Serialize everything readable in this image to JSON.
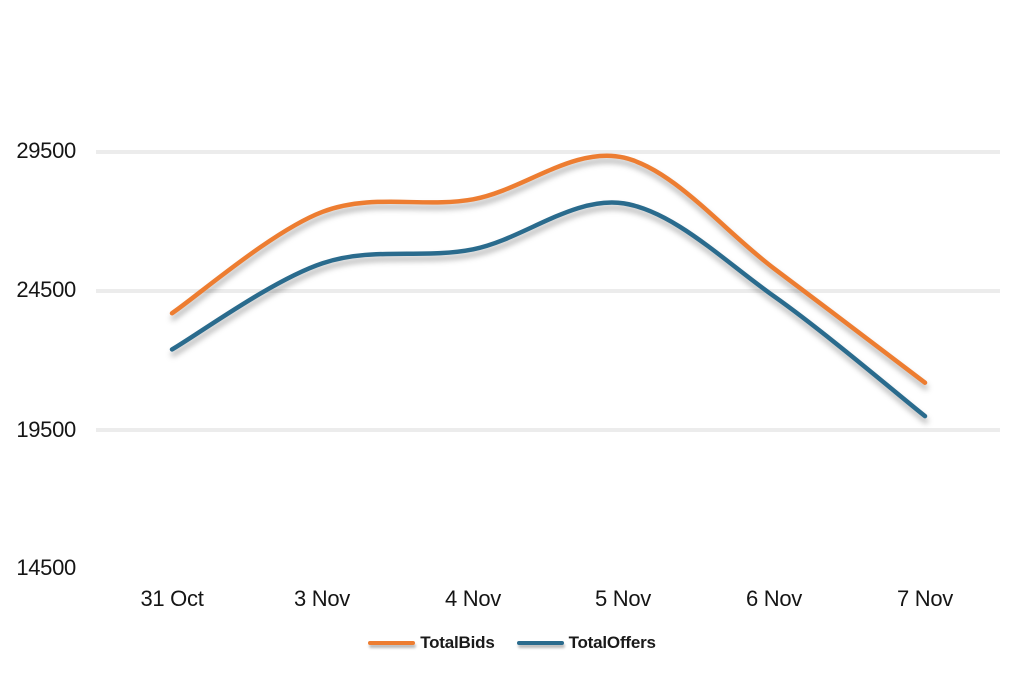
{
  "chart_data": {
    "type": "line",
    "title": "",
    "xlabel": "",
    "ylabel": "",
    "smooth": true,
    "grid": "horizontal",
    "legend_position": "bottom",
    "categories": [
      "31 Oct",
      "3 Nov",
      "4 Nov",
      "5 Nov",
      "6 Nov",
      "7 Nov"
    ],
    "series": [
      {
        "name": "TotalBids",
        "color": "#ED7D31",
        "values": [
          23700,
          27350,
          27800,
          29300,
          25300,
          21200
        ]
      },
      {
        "name": "TotalOffers",
        "color": "#2A6B8D",
        "values": [
          22400,
          25500,
          26000,
          27650,
          24300,
          20000
        ]
      }
    ],
    "yticks": [
      14500,
      19500,
      24500,
      29500
    ],
    "ytick_labels": [
      "29500",
      "24500",
      "19500",
      "14500"
    ],
    "ylim": [
      14500,
      30200
    ],
    "gridline_values": [
      29500,
      24500,
      19500
    ],
    "gridline_color": "#ececec",
    "background_color": "#ffffff"
  }
}
